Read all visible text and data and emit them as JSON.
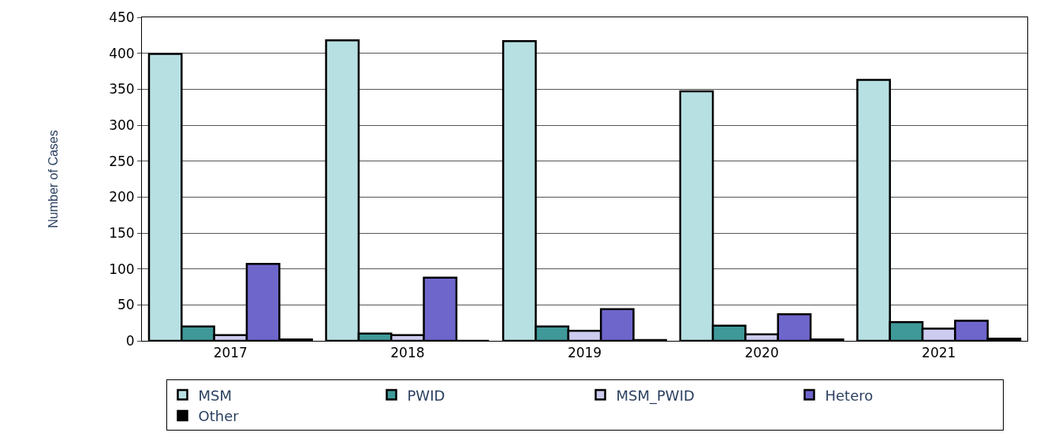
{
  "chart_data": {
    "type": "bar",
    "ylabel": "Number of Cases",
    "categories": [
      "2017",
      "2018",
      "2019",
      "2020",
      "2021"
    ],
    "series": [
      {
        "name": "MSM",
        "color": "#b7e0e3",
        "values": [
          399,
          418,
          417,
          347,
          363
        ]
      },
      {
        "name": "PWID",
        "color": "#3f9999",
        "values": [
          20,
          10,
          20,
          21,
          26
        ]
      },
      {
        "name": "MSM_PWID",
        "color": "#ccccf0",
        "values": [
          8,
          8,
          14,
          9,
          17
        ]
      },
      {
        "name": "Hetero",
        "color": "#6f66cc",
        "values": [
          107,
          88,
          44,
          37,
          28
        ]
      },
      {
        "name": "Other",
        "color": "#000000",
        "values": [
          2,
          0,
          1,
          2,
          3
        ]
      }
    ],
    "ylim": [
      0,
      450
    ],
    "yticks": [
      0,
      50,
      100,
      150,
      200,
      250,
      300,
      350,
      400,
      450
    ],
    "grid": "y",
    "legend": "bottom"
  }
}
